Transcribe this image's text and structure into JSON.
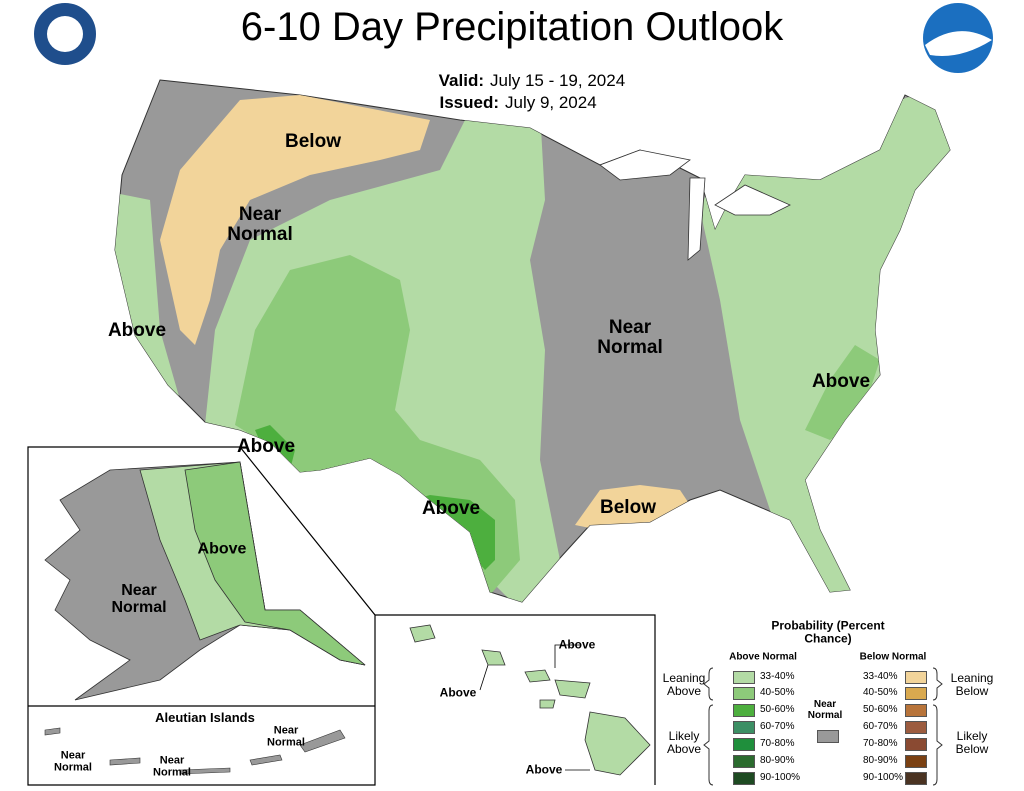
{
  "header": {
    "title": "6-10 Day Precipitation Outlook",
    "valid_label": "Valid:",
    "valid": "July 15 - 19, 2024",
    "issued_label": "Issued:",
    "issued": "July 9, 2024"
  },
  "map_labels": [
    "Below",
    "Near Normal",
    "Above",
    "Near Normal",
    "Above",
    "Above",
    "Above",
    "Below"
  ],
  "alaska_labels": [
    "Above",
    "Near Normal"
  ],
  "aleutians": {
    "title": "Aleutian Islands",
    "labels": [
      "Near Normal",
      "Near Normal",
      "Near Normal"
    ]
  },
  "hawaii_labels": [
    "Above",
    "Above",
    "Above"
  ],
  "legend": {
    "title": "Probability (Percent Chance)",
    "above_heading": "Above Normal",
    "below_heading": "Below Normal",
    "near_normal": {
      "label": "Near Normal",
      "color": "#999999"
    },
    "above": [
      {
        "range": "33-40%",
        "color": "#b3dba5"
      },
      {
        "range": "40-50%",
        "color": "#8dca7a"
      },
      {
        "range": "50-60%",
        "color": "#4daf3e"
      },
      {
        "range": "60-70%",
        "color": "#3c8f64"
      },
      {
        "range": "70-80%",
        "color": "#1f8f3c"
      },
      {
        "range": "80-90%",
        "color": "#2b6b2e"
      },
      {
        "range": "90-100%",
        "color": "#1e4a22"
      }
    ],
    "below": [
      {
        "range": "33-40%",
        "color": "#f2d49a"
      },
      {
        "range": "40-50%",
        "color": "#d9a94f"
      },
      {
        "range": "50-60%",
        "color": "#b8743a"
      },
      {
        "range": "60-70%",
        "color": "#9c5c3f"
      },
      {
        "range": "70-80%",
        "color": "#8a4a32"
      },
      {
        "range": "80-90%",
        "color": "#7a4012"
      },
      {
        "range": "90-100%",
        "color": "#4a3322"
      }
    ],
    "groups": [
      "Leaning Above",
      "Likely Above",
      "Leaning Below",
      "Likely Below"
    ]
  }
}
